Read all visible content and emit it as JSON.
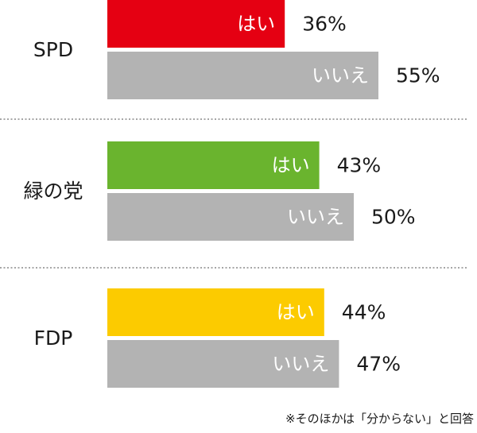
{
  "chart_data": {
    "type": "bar",
    "orientation": "horizontal",
    "groups": [
      {
        "name": "SPD",
        "bars": [
          {
            "label": "はい",
            "value": 36,
            "display": "36%",
            "color": "#e50012"
          },
          {
            "label": "いいえ",
            "value": 55,
            "display": "55%",
            "color": "#b3b3b3"
          }
        ]
      },
      {
        "name": "緑の党",
        "bars": [
          {
            "label": "はい",
            "value": 43,
            "display": "43%",
            "color": "#6ab42e"
          },
          {
            "label": "いいえ",
            "value": 50,
            "display": "50%",
            "color": "#b3b3b3"
          }
        ]
      },
      {
        "name": "FDP",
        "bars": [
          {
            "label": "はい",
            "value": 44,
            "display": "44%",
            "color": "#fccb00"
          },
          {
            "label": "いいえ",
            "value": 47,
            "display": "47%",
            "color": "#b3b3b3"
          }
        ]
      }
    ],
    "xlim": [
      0,
      100
    ],
    "grid": false,
    "separator_color": "#888888"
  },
  "note": "※そのほかは「分からない」と回答"
}
